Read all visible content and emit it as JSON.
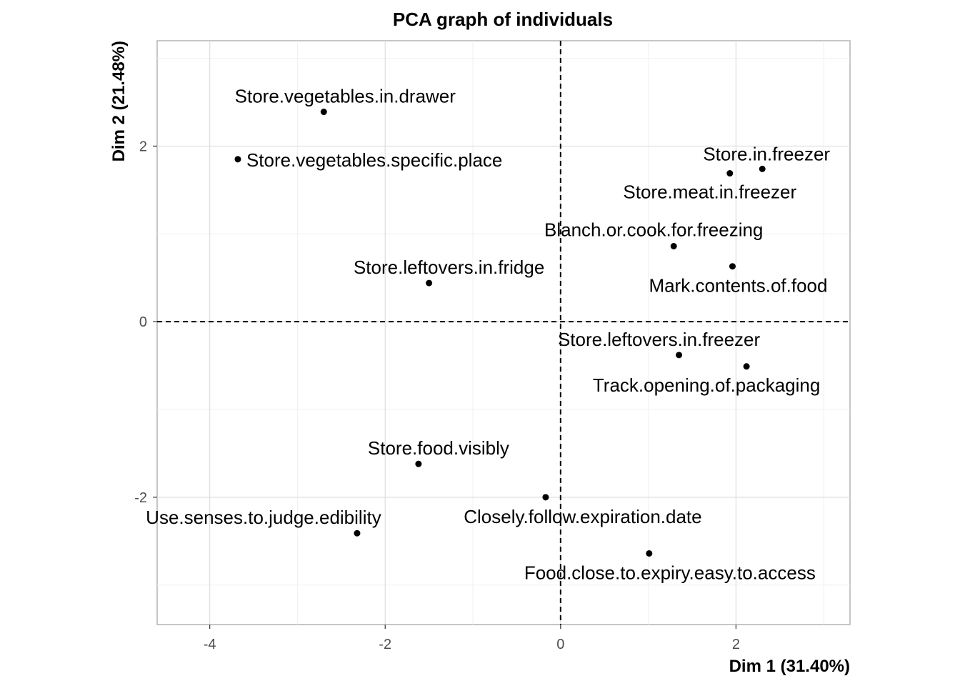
{
  "chart_data": {
    "type": "scatter",
    "title": "PCA graph of individuals",
    "xlabel": "Dim 1 (31.40%)",
    "ylabel": "Dim 2 (21.48%)",
    "xlim": [
      -4.6,
      3.3
    ],
    "ylim": [
      -3.45,
      3.2
    ],
    "xticks": [
      -4,
      -2,
      0,
      2
    ],
    "yticks": [
      -2,
      0,
      2
    ],
    "tick_labels_x": [
      "-4",
      "-2",
      "0",
      "2"
    ],
    "tick_labels_y": [
      "-2",
      "0",
      "2"
    ],
    "grid": true,
    "reference_lines": {
      "x": 0,
      "y": 0,
      "style": "dashed"
    },
    "point_color": "#000000",
    "points": [
      {
        "label": "Store.vegetables.in.drawer",
        "x": -2.7,
        "y": 2.39
      },
      {
        "label": "Store.vegetables.specific.place",
        "x": -3.68,
        "y": 1.85
      },
      {
        "label": "Store.in.freezer",
        "x": 2.3,
        "y": 1.74
      },
      {
        "label": "Store.meat.in.freezer",
        "x": 1.93,
        "y": 1.69
      },
      {
        "label": "Blanch.or.cook.for.freezing",
        "x": 1.29,
        "y": 0.86
      },
      {
        "label": "Mark.contents.of.food",
        "x": 1.96,
        "y": 0.63
      },
      {
        "label": "Store.leftovers.in.fridge",
        "x": -1.5,
        "y": 0.44
      },
      {
        "label": "Store.leftovers.in.freezer",
        "x": 1.35,
        "y": -0.38
      },
      {
        "label": "Track.opening.of.packaging",
        "x": 2.12,
        "y": -0.51
      },
      {
        "label": "Store.food.visibly",
        "x": -1.62,
        "y": -1.62
      },
      {
        "label": "Closely.follow.expiration.date",
        "x": -0.17,
        "y": -2.0
      },
      {
        "label": "Use.senses.to.judge.edibility",
        "x": -2.32,
        "y": -2.41
      },
      {
        "label": "Food.close.to.expiry.easy.to.access",
        "x": 1.01,
        "y": -2.64
      }
    ]
  }
}
